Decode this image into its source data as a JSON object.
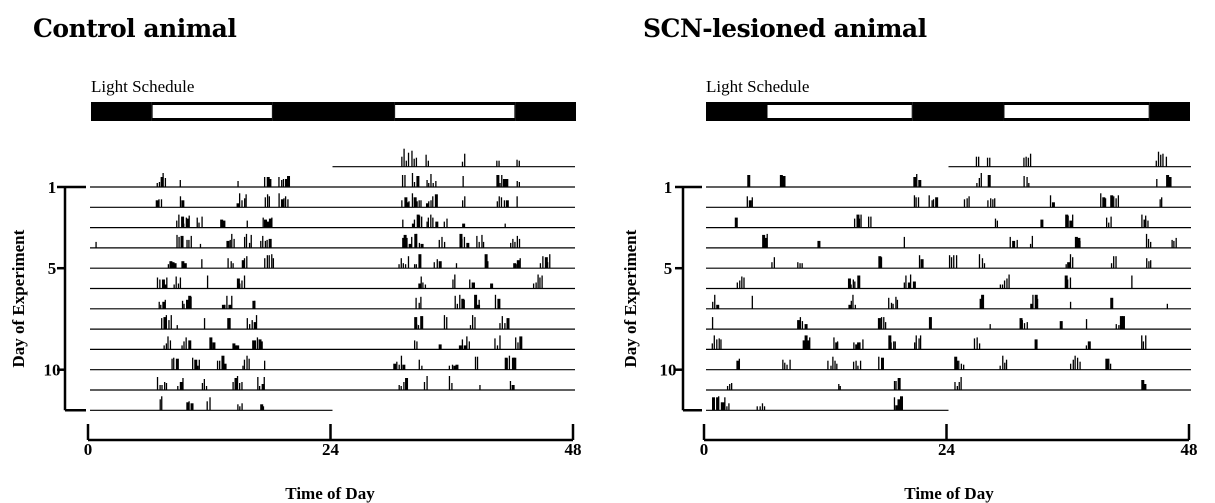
{
  "chart_data": [
    {
      "type": "actogram",
      "title": "Control animal",
      "light_schedule_label": "Light Schedule",
      "light_schedule": [
        {
          "state": "dark",
          "start": 0,
          "end": 6
        },
        {
          "state": "light",
          "start": 6,
          "end": 18
        },
        {
          "state": "dark",
          "start": 18,
          "end": 30
        },
        {
          "state": "light",
          "start": 30,
          "end": 42
        },
        {
          "state": "dark",
          "start": 42,
          "end": 48
        }
      ],
      "xlabel": "Time of Day",
      "ylabel": "Day of Experiment",
      "xlim": [
        0,
        48
      ],
      "x_ticks": [
        "0",
        "24",
        "48"
      ],
      "y_ticks": [
        {
          "day": 1,
          "label": "1"
        },
        {
          "day": 5,
          "label": "5"
        },
        {
          "day": 10,
          "label": "10"
        }
      ],
      "days": 12,
      "activity_onsets_by_day": [
        [
          6.5,
          8.8,
          14.5,
          17.2,
          18.6,
          30.8,
          31.8,
          33.2,
          36.8,
          40.2,
          42.2
        ],
        [
          6.5,
          8.8,
          14.5,
          17.2,
          18.6,
          30.8,
          31.8,
          33.2,
          36.8,
          40.2,
          42.2
        ],
        [
          8.5,
          9.5,
          10.5,
          12.8,
          15.5,
          17.0,
          30.8,
          31.8,
          33.2,
          35.0,
          36.8,
          41.0
        ],
        [
          0.5,
          8.5,
          9.5,
          10.8,
          13.5,
          15.2,
          16.8,
          30.8,
          32.0,
          34.5,
          36.5,
          38.2,
          41.5
        ],
        [
          7.6,
          9.0,
          11.0,
          13.6,
          15.0,
          17.2,
          30.5,
          32.0,
          34.0,
          36.2,
          39.0,
          41.8,
          44.5
        ],
        [
          6.6,
          8.2,
          11.5,
          14.5,
          32.4,
          35.8,
          37.5,
          39.5,
          43.8
        ],
        [
          6.7,
          9.0,
          13.0,
          16.0,
          32.2,
          36.0,
          38.0,
          40.0
        ],
        [
          7.0,
          8.5,
          11.2,
          13.5,
          15.5,
          32.0,
          35.0,
          37.5,
          40.5
        ],
        [
          7.2,
          9.0,
          11.8,
          14.0,
          16.0,
          32.0,
          34.5,
          36.5,
          40.0,
          42.0
        ],
        [
          8.0,
          10.0,
          12.5,
          15.0,
          17.2,
          30.0,
          32.5,
          35.5,
          38.0,
          41.0
        ],
        [
          6.6,
          8.6,
          11.0,
          14.0,
          16.5,
          30.5,
          33.0,
          35.5,
          38.5,
          41.5
        ],
        [
          6.8,
          9.5,
          11.5,
          14.5,
          16.8
        ]
      ]
    },
    {
      "type": "actogram",
      "title": "SCN-lesioned animal",
      "light_schedule_label": "Light Schedule",
      "light_schedule": [
        {
          "state": "dark",
          "start": 0,
          "end": 6
        },
        {
          "state": "light",
          "start": 6,
          "end": 20.5
        },
        {
          "state": "dark",
          "start": 20.5,
          "end": 29.5
        },
        {
          "state": "light",
          "start": 29.5,
          "end": 44
        },
        {
          "state": "dark",
          "start": 44,
          "end": 48
        }
      ],
      "xlabel": "Time of Day",
      "ylabel": "Day of Experiment",
      "xlim": [
        0,
        48
      ],
      "x_ticks": [
        "0",
        "24",
        "48"
      ],
      "y_ticks": [
        {
          "day": 1,
          "label": "1"
        },
        {
          "day": 5,
          "label": "5"
        },
        {
          "day": 10,
          "label": "10"
        }
      ],
      "days": 12,
      "activity_onsets_by_day": [
        [
          4.0,
          7.3,
          20.5,
          26.7,
          27.8,
          31.4,
          44.5,
          45.5
        ],
        [
          4.0,
          20.5,
          22.0,
          25.5,
          27.8,
          34.0,
          39.0,
          40.0,
          44.8
        ],
        [
          2.8,
          14.6,
          16.0,
          28.5,
          33.0,
          35.5,
          39.5,
          43.0
        ],
        [
          5.5,
          11.0,
          19.5,
          30.0,
          32.0,
          36.5,
          43.5,
          46.0
        ],
        [
          6.4,
          9.0,
          17.0,
          21.0,
          24.0,
          27.0,
          35.5,
          40.0,
          43.5
        ],
        [
          3.0,
          14.0,
          19.5,
          29.0,
          35.5,
          42.0
        ],
        [
          0.5,
          4.5,
          14.0,
          18.0,
          27.0,
          32.0,
          36.0,
          40.0,
          45.5
        ],
        [
          0.5,
          9.0,
          17.0,
          22.0,
          28.0,
          31.0,
          35.0,
          37.5,
          40.5
        ],
        [
          0.5,
          9.5,
          12.5,
          14.5,
          18.0,
          20.5,
          26.5,
          32.5,
          37.5,
          43.0
        ],
        [
          3.0,
          7.5,
          12.0,
          14.5,
          17.0,
          24.5,
          29.0,
          36.0,
          39.5
        ],
        [
          2.0,
          13.0,
          18.5,
          24.5,
          43.0
        ],
        [
          0.5,
          1.5,
          5.0,
          18.5
        ]
      ]
    }
  ]
}
